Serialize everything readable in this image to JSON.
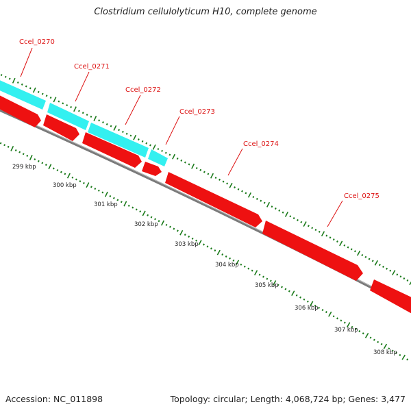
{
  "title": "Clostridium cellulolyticum H10, complete genome",
  "footer": {
    "accession": "Accession: NC_011898",
    "summary": "Topology: circular; Length: 4,068,724 bp; Genes: 3,477"
  },
  "colors": {
    "backbone": "#8c8c8c",
    "forward_gene": "#33f0f0",
    "reverse_gene": "#ee1111",
    "tick": "#1a7a1a",
    "gene_label": "#dd1111",
    "kbp_label": "#222222"
  },
  "genes": [
    {
      "label": "Ccel_0270",
      "strand": "forward"
    },
    {
      "label": "Ccel_0271",
      "strand": "forward"
    },
    {
      "label": "Ccel_0272",
      "strand": "forward"
    },
    {
      "label": "Ccel_0273",
      "strand": "forward"
    },
    {
      "label": "Ccel_0274",
      "strand": "reverse"
    },
    {
      "label": "Ccel_0275",
      "strand": "reverse"
    }
  ],
  "kbp_labels": [
    "299 kbp",
    "300 kbp",
    "301 kbp",
    "302 kbp",
    "303 kbp",
    "304 kbp",
    "305 kbp",
    "306 kbp",
    "307 kbp",
    "308 kbp"
  ]
}
